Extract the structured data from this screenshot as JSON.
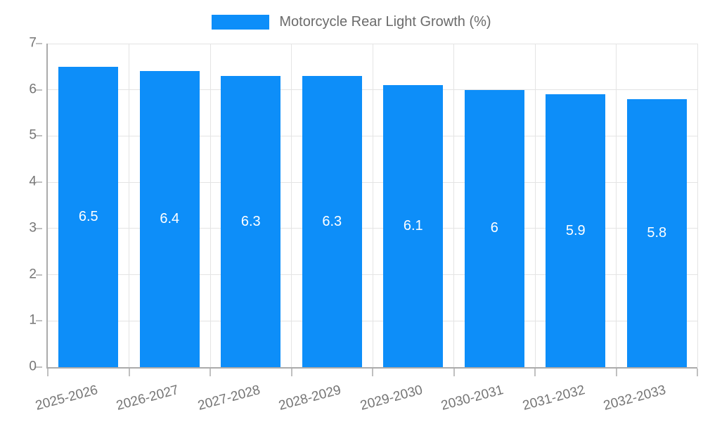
{
  "chart_data": {
    "type": "bar",
    "title": "Motorcycle Rear Light Growth (%)",
    "categories": [
      "2025-2026",
      "2026-2027",
      "2027-2028",
      "2028-2029",
      "2029-2030",
      "2030-2031",
      "2031-2032",
      "2032-2033"
    ],
    "values": [
      6.5,
      6.4,
      6.3,
      6.3,
      6.1,
      6,
      5.9,
      5.8
    ],
    "value_labels": [
      "6.5",
      "6.4",
      "6.3",
      "6.3",
      "6.1",
      "6",
      "5.9",
      "5.8"
    ],
    "xlabel": "",
    "ylabel": "",
    "ylim": [
      0,
      7
    ],
    "yticks": [
      0,
      1,
      2,
      3,
      4,
      5,
      6,
      7
    ],
    "grid": true,
    "legend_position": "top-center",
    "x_label_rotation_deg": -15,
    "colors": {
      "bar": "#0d8ef9",
      "value_label": "#ffffff",
      "axis_text": "#757575",
      "legend_text": "#6b6b6b",
      "gridline": "#e4e4e4",
      "axis_line": "#ababab",
      "tick": "#c0c0c0",
      "background": "#ffffff"
    }
  }
}
